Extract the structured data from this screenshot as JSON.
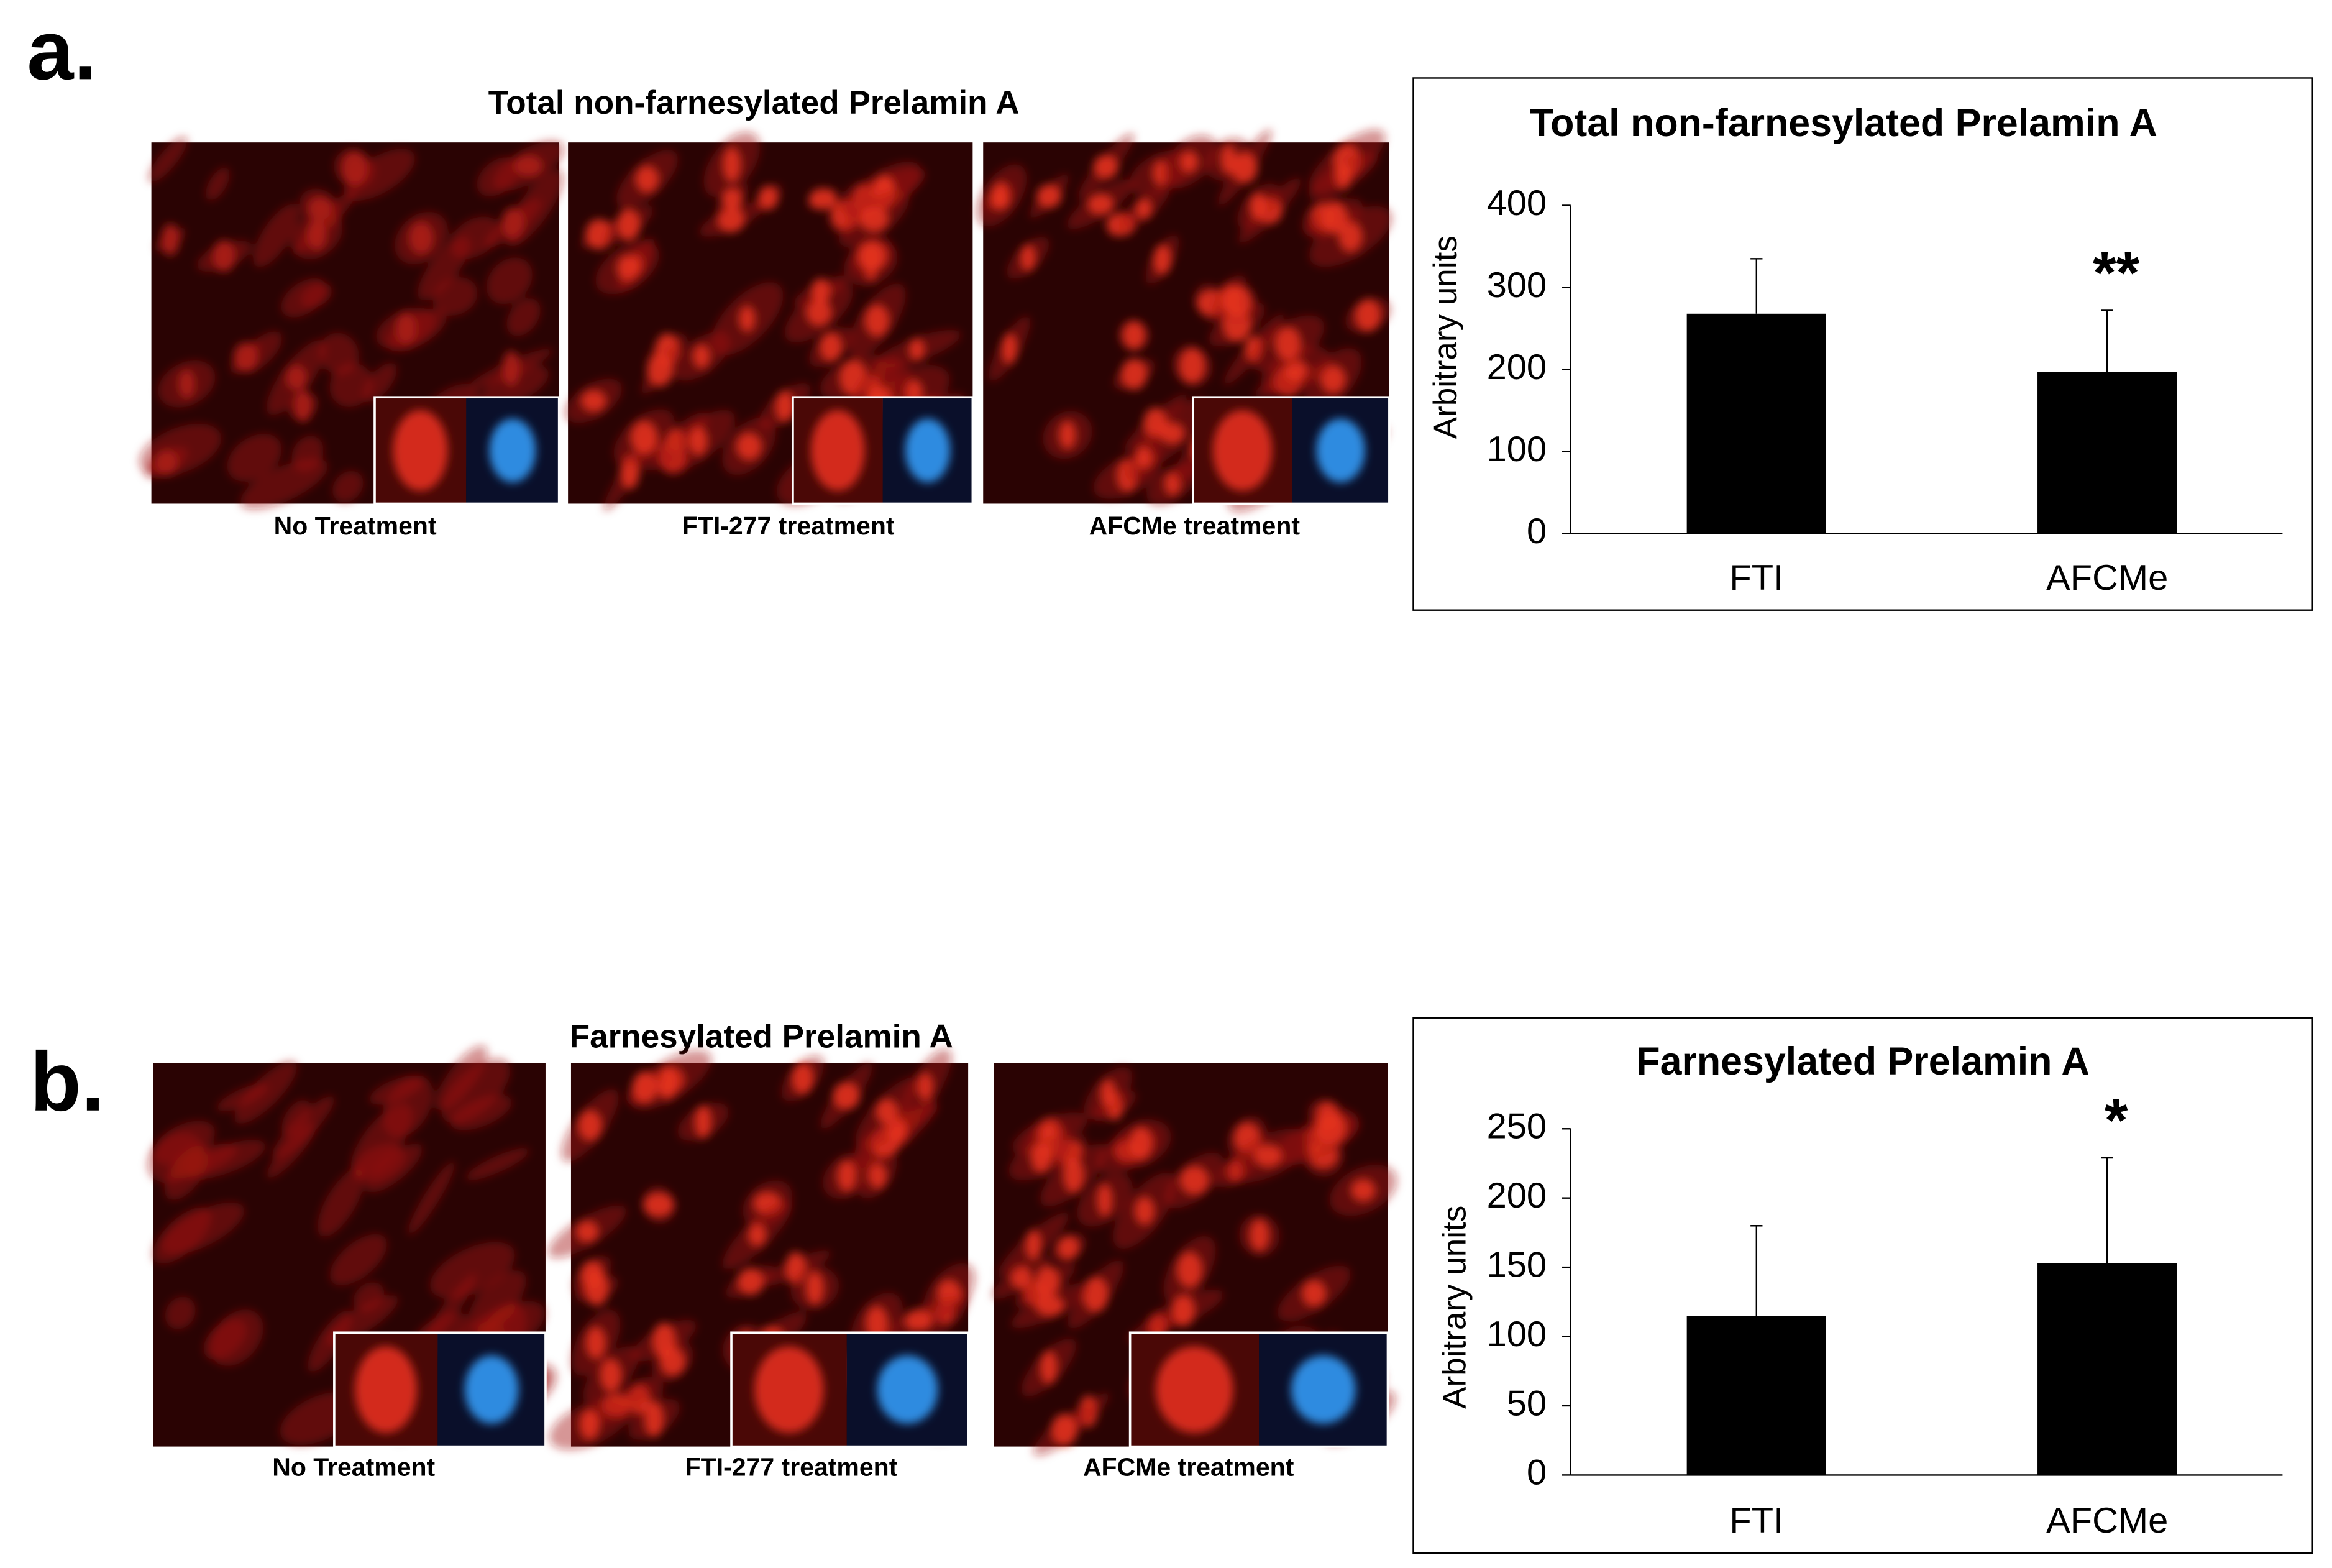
{
  "figure": {
    "panels": [
      {
        "label": "a.",
        "title": "Total non-farnesylated Prelamin A",
        "captions": [
          "No Treatment",
          "FTI-277 treatment",
          "AFCMe treatment"
        ]
      },
      {
        "label": "b.",
        "title": "Farnesylated Prelamin A",
        "captions": [
          "No Treatment",
          "FTI-277 treatment",
          "AFCMe treatment"
        ]
      }
    ]
  },
  "chart_data": [
    {
      "type": "bar",
      "title": "Total non-farnesylated Prelamin A",
      "y_label": "Arbitrary units",
      "categories": [
        "FTI",
        "AFCMe"
      ],
      "values": [
        268,
        197
      ],
      "errors": [
        67,
        75
      ],
      "value_annotations": [
        null,
        "**"
      ],
      "color": "#000000",
      "ylim": [
        0,
        400
      ],
      "yticks": [
        0,
        100,
        200,
        300,
        400
      ],
      "grid": false
    },
    {
      "type": "bar",
      "title": "Farnesylated Prelamin A",
      "y_label": "Arbitrary units",
      "categories": [
        "FTI",
        "AFCMe"
      ],
      "values": [
        115,
        153
      ],
      "errors": [
        65,
        76
      ],
      "value_annotations": [
        null,
        "*"
      ],
      "color": "#000000",
      "ylim": [
        0,
        250
      ],
      "yticks": [
        0,
        50,
        100,
        150,
        200,
        250
      ],
      "grid": false
    }
  ]
}
